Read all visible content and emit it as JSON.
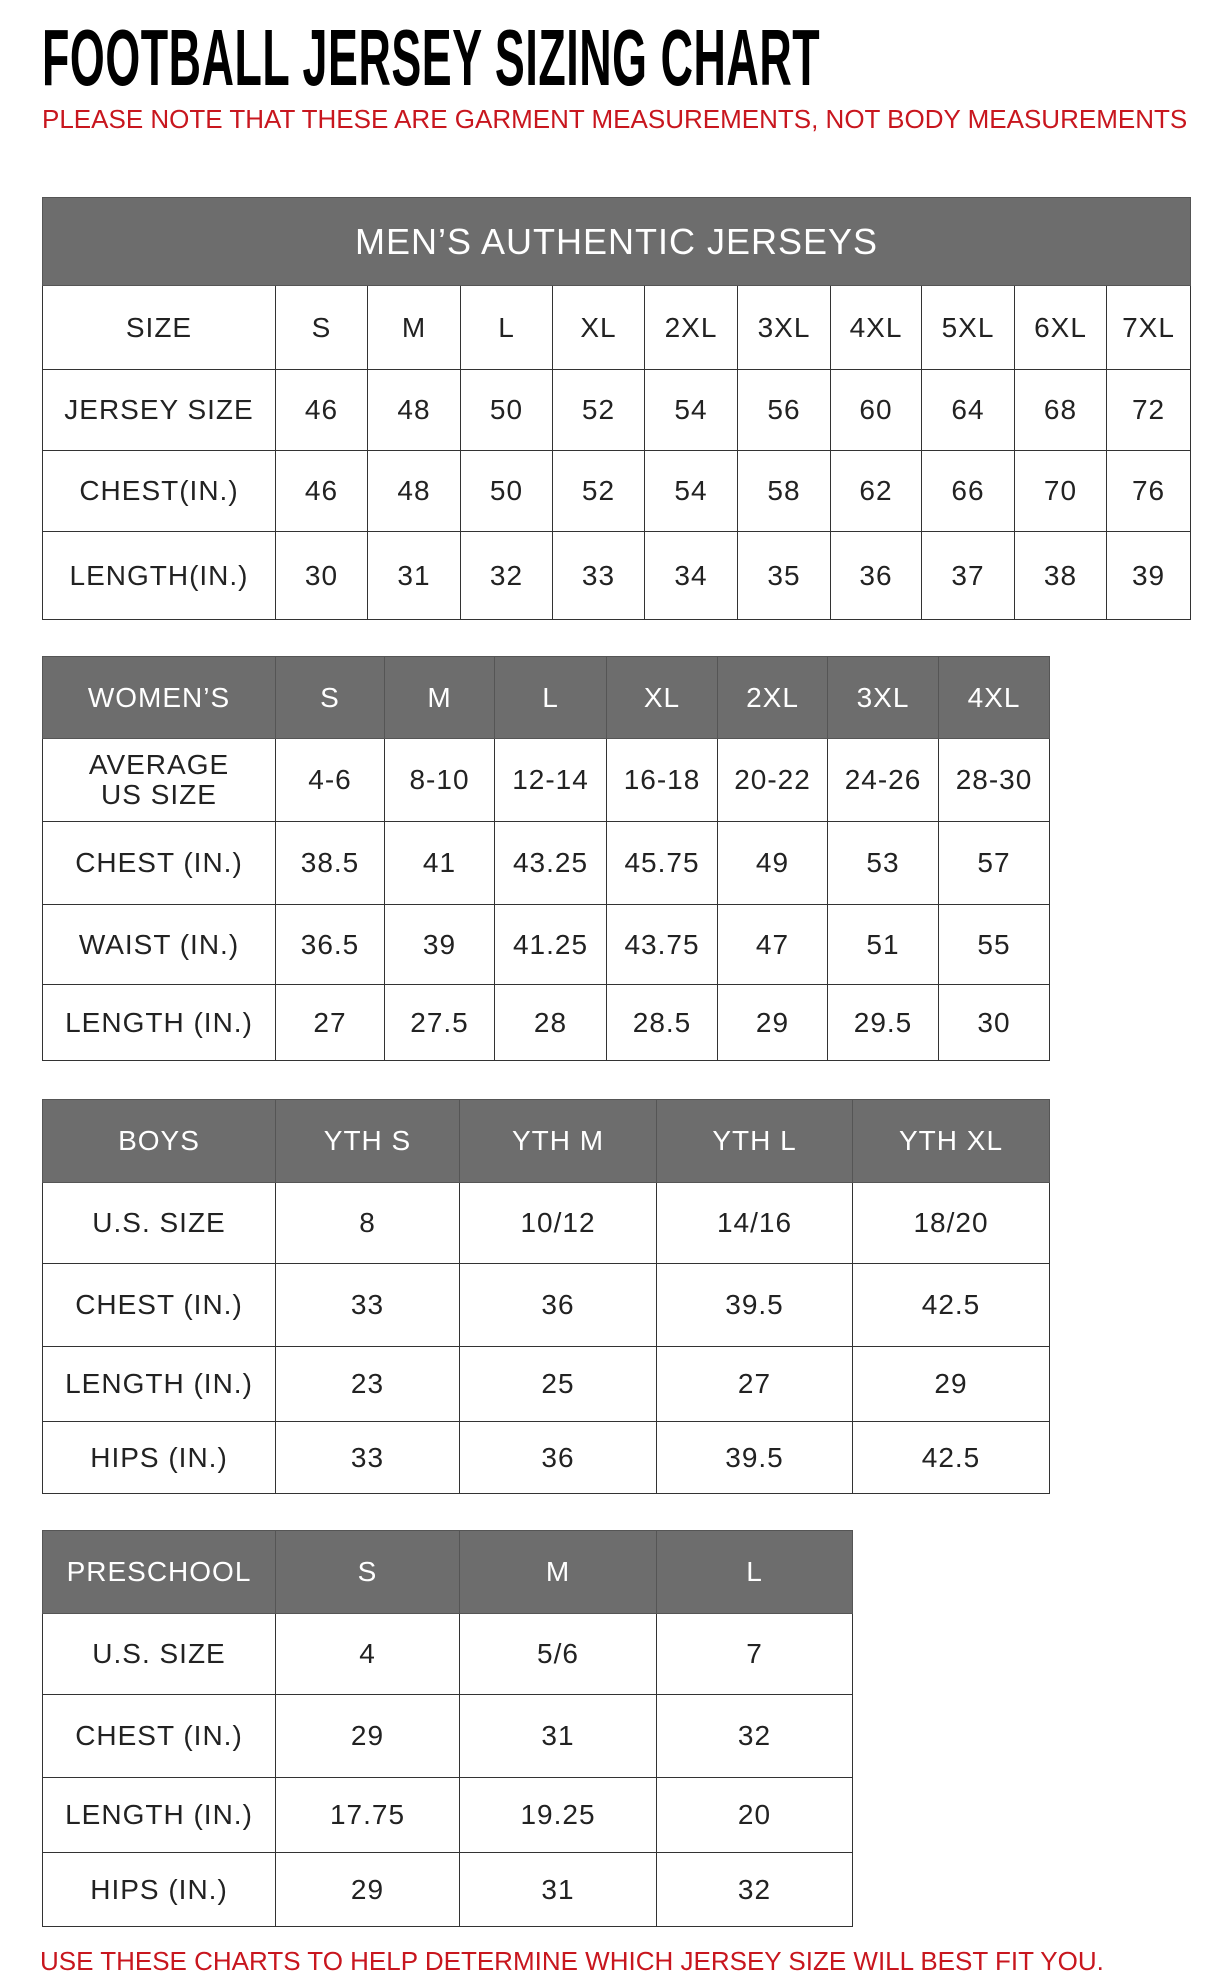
{
  "title": "FOOTBALL JERSEY SIZING CHART",
  "note": "PLEASE NOTE THAT THESE ARE GARMENT MEASUREMENTS, NOT BODY MEASUREMENTS",
  "footer": "USE THESE CHARTS TO HELP DETERMINE WHICH JERSEY SIZE WILL BEST FIT YOU.",
  "colors": {
    "header_bg": "#6d6d6d",
    "accent_red": "#c8161e"
  },
  "tables": [
    {
      "id": "mens",
      "banner": "MEN’S AUTHENTIC JERSEYS",
      "header": [
        "SIZE",
        "S",
        "M",
        "L",
        "XL",
        "2XL",
        "3XL",
        "4XL",
        "5XL",
        "6XL",
        "7XL"
      ],
      "header_is_dark": false,
      "rows": [
        [
          "JERSEY SIZE",
          "46",
          "48",
          "50",
          "52",
          "54",
          "56",
          "60",
          "64",
          "68",
          "72"
        ],
        [
          "CHEST(IN.)",
          "46",
          "48",
          "50",
          "52",
          "54",
          "58",
          "62",
          "66",
          "70",
          "76"
        ],
        [
          "LENGTH(IN.)",
          "30",
          "31",
          "32",
          "33",
          "34",
          "35",
          "36",
          "37",
          "38",
          "39"
        ]
      ]
    },
    {
      "id": "womens",
      "header": [
        "WOMEN’S",
        "S",
        "M",
        "L",
        "XL",
        "2XL",
        "3XL",
        "4XL"
      ],
      "header_is_dark": true,
      "rows": [
        [
          "AVERAGE\nUS SIZE",
          "4-6",
          "8-10",
          "12-14",
          "16-18",
          "20-22",
          "24-26",
          "28-30"
        ],
        [
          "CHEST (IN.)",
          "38.5",
          "41",
          "43.25",
          "45.75",
          "49",
          "53",
          "57"
        ],
        [
          "WAIST (IN.)",
          "36.5",
          "39",
          "41.25",
          "43.75",
          "47",
          "51",
          "55"
        ],
        [
          "LENGTH (IN.)",
          "27",
          "27.5",
          "28",
          "28.5",
          "29",
          "29.5",
          "30"
        ]
      ]
    },
    {
      "id": "boys",
      "header": [
        "BOYS",
        "YTH S",
        "YTH M",
        "YTH L",
        "YTH XL"
      ],
      "header_is_dark": true,
      "rows": [
        [
          "U.S. SIZE",
          "8",
          "10/12",
          "14/16",
          "18/20"
        ],
        [
          "CHEST (IN.)",
          "33",
          "36",
          "39.5",
          "42.5"
        ],
        [
          "LENGTH (IN.)",
          "23",
          "25",
          "27",
          "29"
        ],
        [
          "HIPS (IN.)",
          "33",
          "36",
          "39.5",
          "42.5"
        ]
      ]
    },
    {
      "id": "preschool",
      "header": [
        "PRESCHOOL",
        "S",
        "M",
        "L"
      ],
      "header_is_dark": true,
      "rows": [
        [
          "U.S. SIZE",
          "4",
          "5/6",
          "7"
        ],
        [
          "CHEST (IN.)",
          "29",
          "31",
          "32"
        ],
        [
          "LENGTH (IN.)",
          "17.75",
          "19.25",
          "20"
        ],
        [
          "HIPS (IN.)",
          "29",
          "31",
          "32"
        ]
      ]
    }
  ]
}
